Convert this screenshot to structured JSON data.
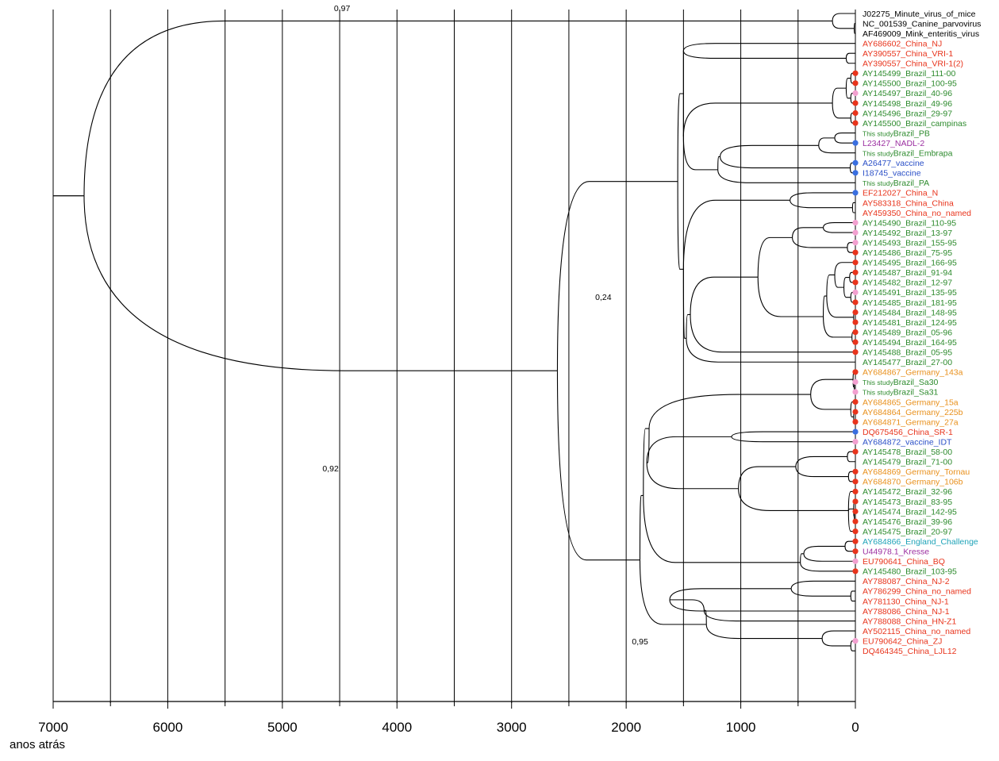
{
  "axis": {
    "title": "anos atrás",
    "ticks": [
      7000,
      6000,
      5000,
      4000,
      3000,
      2000,
      1000,
      0
    ],
    "ticks_labels": [
      "7000",
      "6000",
      "5000",
      "4000",
      "3000",
      "2000",
      "1000",
      "0"
    ],
    "range": [
      0,
      7000
    ],
    "gridline_interval": 500
  },
  "colors": {
    "red": "#e8341c",
    "green": "#2e8b2e",
    "purple": "#9b2ea0",
    "blue": "#2a4fc7",
    "orange": "#e8901c",
    "cyan": "#1fa3b8",
    "black": "#000000",
    "pink": "#f2a0d0",
    "dot_blue": "#3a6fe0"
  },
  "node_support": [
    {
      "label": "0,97",
      "age": 4550
    },
    {
      "label": "0,92",
      "age": 4650
    },
    {
      "label": "0,24",
      "age": 2270
    },
    {
      "label": "0,95",
      "age": 1950
    }
  ],
  "leaves": [
    {
      "name": "J02275_Minute_virus_of_mice",
      "color": "black"
    },
    {
      "name": "NC_001539_Canine_parvovirus",
      "color": "black"
    },
    {
      "name": "AF469009_Mink_enteritis_virus",
      "color": "black"
    },
    {
      "name": "AY686602_China_NJ",
      "color": "red"
    },
    {
      "name": "AY390557_China_VRI-1",
      "color": "red"
    },
    {
      "name": "AY390557_China_VRI-1(2)",
      "color": "red"
    },
    {
      "name": "AY145499_Brazil_111-00",
      "color": "green",
      "dot": "red"
    },
    {
      "name": "AY145500_Brazil_100-95",
      "color": "green",
      "dot": "red"
    },
    {
      "name": "AY145497_Brazil_40-96",
      "color": "green",
      "dot": "pink"
    },
    {
      "name": "AY145498_Brazil_49-96",
      "color": "green",
      "dot": "red"
    },
    {
      "name": "AY145496_Brazil_29-97",
      "color": "green",
      "dot": "red"
    },
    {
      "name": "AY145500_Brazil_campinas",
      "color": "green",
      "dot": "red"
    },
    {
      "name": "Brazil_PB",
      "prefix": "This study",
      "color": "green"
    },
    {
      "name": "L23427_NADL-2",
      "color": "purple",
      "dot": "dot_blue"
    },
    {
      "name": "Brazil_Embrapa",
      "prefix": "This study",
      "color": "green"
    },
    {
      "name": "A26477_vaccine",
      "color": "blue",
      "dot": "dot_blue"
    },
    {
      "name": "I18745_vaccine",
      "color": "blue",
      "dot": "dot_blue"
    },
    {
      "name": "Brazil_PA",
      "prefix": "This study",
      "color": "green"
    },
    {
      "name": "EF212027_China_N",
      "color": "red",
      "dot": "dot_blue"
    },
    {
      "name": "AY583318_China_China",
      "color": "red"
    },
    {
      "name": "AY459350_China_no_named",
      "color": "red"
    },
    {
      "name": "AY145490_Brazil_110-95",
      "color": "green",
      "dot": "pink"
    },
    {
      "name": "AY145492_Brazil_13-97",
      "color": "green",
      "dot": "pink"
    },
    {
      "name": "AY145493_Brazil_155-95",
      "color": "green",
      "dot": "pink"
    },
    {
      "name": "AY145486_Brazil_75-95",
      "color": "green",
      "dot": "red"
    },
    {
      "name": "AY145495_Brazil_166-95",
      "color": "green",
      "dot": "red"
    },
    {
      "name": "AY145487_Brazil_91-94",
      "color": "green",
      "dot": "red"
    },
    {
      "name": "AY145482_Brazil_12-97",
      "color": "green",
      "dot": "red"
    },
    {
      "name": "AY145491_Brazil_135-95",
      "color": "green",
      "dot": "pink"
    },
    {
      "name": "AY145485_Brazil_181-95",
      "color": "green",
      "dot": "red"
    },
    {
      "name": "AY145484_Brazil_148-95",
      "color": "green",
      "dot": "red"
    },
    {
      "name": "AY145481_Brazil_124-95",
      "color": "green",
      "dot": "red"
    },
    {
      "name": "AY145489_Brazil_05-96",
      "color": "green",
      "dot": "red"
    },
    {
      "name": "AY145494_Brazil_164-95",
      "color": "green",
      "dot": "red"
    },
    {
      "name": "AY145488_Brazil_05-95",
      "color": "green",
      "dot": "red"
    },
    {
      "name": "AY145477_Brazil_27-00",
      "color": "green"
    },
    {
      "name": "AY684867_Germany_143a",
      "color": "orange",
      "dot": "red"
    },
    {
      "name": "Brazil_Sa30",
      "prefix": "This study",
      "color": "green",
      "dot": "pink"
    },
    {
      "name": "Brazil_Sa31",
      "prefix": "This study",
      "color": "green",
      "dot": "pink"
    },
    {
      "name": "AY684865_Germany_15a",
      "color": "orange",
      "dot": "red"
    },
    {
      "name": "AY684864_Germany_225b",
      "color": "orange",
      "dot": "red"
    },
    {
      "name": "AY684871_Germany_27a",
      "color": "orange",
      "dot": "red"
    },
    {
      "name": "DQ675456_China_SR-1",
      "color": "red",
      "dot": "dot_blue"
    },
    {
      "name": "AY684872_vaccine_IDT",
      "color": "blue",
      "dot": "pink"
    },
    {
      "name": "AY145478_Brazil_58-00",
      "color": "green",
      "dot": "red"
    },
    {
      "name": "AY145479_Brazil_71-00",
      "color": "green"
    },
    {
      "name": "AY684869_Germany_Tornau",
      "color": "orange",
      "dot": "red"
    },
    {
      "name": "AY684870_Germany_106b",
      "color": "orange",
      "dot": "red"
    },
    {
      "name": "AY145472_Brazil_32-96",
      "color": "green",
      "dot": "red"
    },
    {
      "name": "AY145473_Brazil_83-95",
      "color": "green",
      "dot": "red"
    },
    {
      "name": "AY145474_Brazil_142-95",
      "color": "green",
      "dot": "red"
    },
    {
      "name": "AY145476_Brazil_39-96",
      "color": "green",
      "dot": "red"
    },
    {
      "name": "AY145475_Brazil_20-97",
      "color": "green",
      "dot": "red"
    },
    {
      "name": "AY684866_England_Challenge",
      "color": "cyan",
      "dot": "red"
    },
    {
      "name": "U44978.1_Kresse",
      "color": "purple",
      "dot": "red"
    },
    {
      "name": "EU790641_China_BQ",
      "color": "red",
      "dot": "pink"
    },
    {
      "name": "AY145480_Brazil_103-95",
      "color": "green",
      "dot": "red"
    },
    {
      "name": "AY788087_China_NJ-2",
      "color": "red"
    },
    {
      "name": "AY786299_China_no_named",
      "color": "red"
    },
    {
      "name": "AY781130_China_NJ-1",
      "color": "red"
    },
    {
      "name": "AY788086_China_NJ-1",
      "color": "red"
    },
    {
      "name": "AY788088_China_HN-Z1",
      "color": "red"
    },
    {
      "name": "AY502115_China_no_named",
      "color": "red"
    },
    {
      "name": "EU790642_China_ZJ",
      "color": "red",
      "dot": "pink"
    },
    {
      "name": "DQ464345_China_LJL12",
      "color": "red"
    }
  ]
}
